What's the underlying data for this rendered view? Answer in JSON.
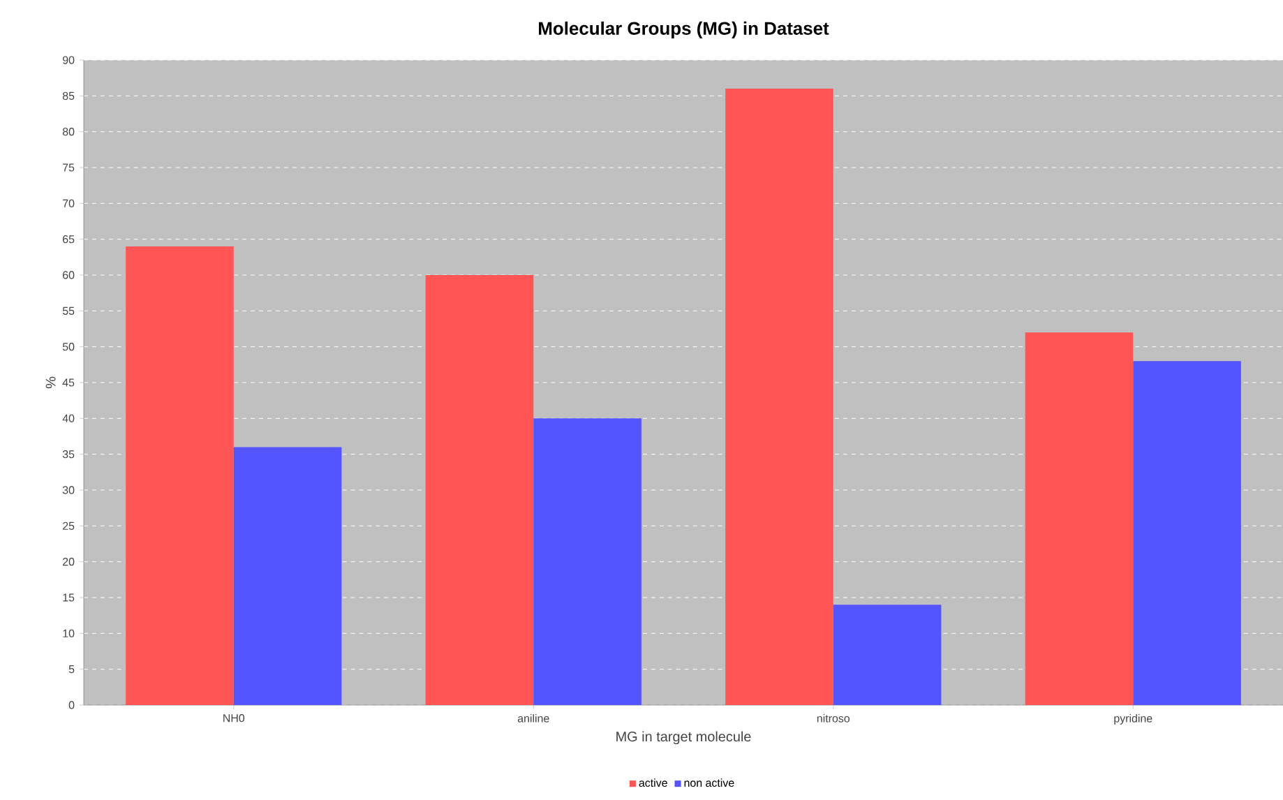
{
  "chart_data": {
    "type": "bar",
    "title": "Molecular Groups (MG) in Dataset",
    "xlabel": "MG in target molecule",
    "ylabel": "%",
    "categories": [
      "NH0",
      "aniline",
      "nitroso",
      "pyridine"
    ],
    "series": [
      {
        "name": "active",
        "color": "#ff5555",
        "values": [
          64,
          60,
          86,
          52
        ]
      },
      {
        "name": "non active",
        "color": "#5555ff",
        "values": [
          36,
          40,
          14,
          48
        ]
      }
    ],
    "ylim": [
      0,
      90
    ],
    "yticks": [
      0,
      5,
      10,
      15,
      20,
      25,
      30,
      35,
      40,
      45,
      50,
      55,
      60,
      65,
      70,
      75,
      80,
      85,
      90
    ],
    "grid": "y",
    "legend": "bottom"
  }
}
